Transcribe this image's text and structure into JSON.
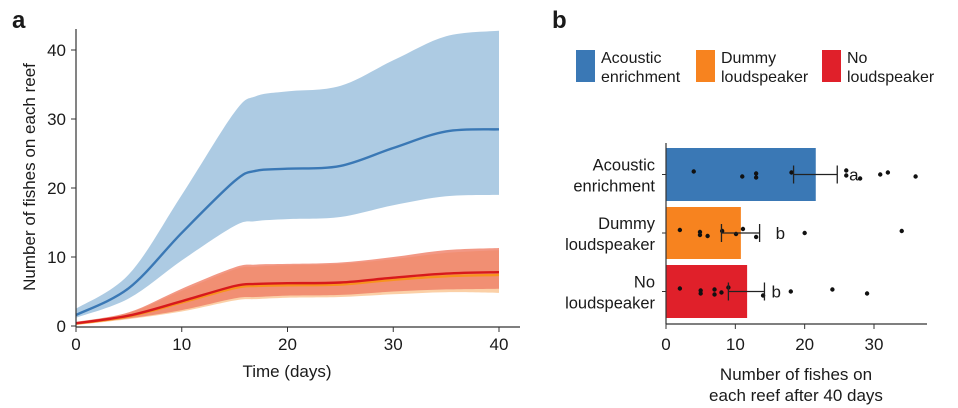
{
  "chart_data": [
    {
      "panel": "a",
      "type": "line",
      "xlabel": "Time (days)",
      "ylabel": "Number of fishes on each reef",
      "xlim": [
        0,
        40
      ],
      "ylim": [
        0,
        43
      ],
      "xticks": [
        0,
        10,
        20,
        30,
        40
      ],
      "yticks": [
        0,
        10,
        20,
        30,
        40
      ],
      "grid": false,
      "x": [
        0,
        5,
        10,
        15,
        17,
        20,
        25,
        30,
        35,
        40
      ],
      "series": [
        {
          "name": "Acoustic enrichment",
          "color": "#3a78b5",
          "band_color": "#a9c8e2",
          "mean": [
            1.6,
            5.5,
            13.5,
            21.0,
            22.5,
            22.8,
            23.2,
            25.8,
            28.2,
            28.5
          ],
          "upper": [
            2.5,
            7.5,
            19.0,
            31.0,
            33.3,
            34.0,
            34.8,
            38.5,
            42.0,
            42.8
          ],
          "lower": [
            1.2,
            4.0,
            9.5,
            14.5,
            15.2,
            15.5,
            15.8,
            17.5,
            18.8,
            19.0
          ]
        },
        {
          "name": "Dummy loudspeaker",
          "color": "#f7931e",
          "band_color": "#f9c08a",
          "mean": [
            0.35,
            1.4,
            3.4,
            5.5,
            5.8,
            5.9,
            6.0,
            6.7,
            7.2,
            7.4
          ],
          "upper": [
            0.55,
            1.9,
            5.1,
            8.2,
            8.6,
            8.8,
            9.0,
            9.7,
            10.6,
            11.0
          ],
          "lower": [
            0.15,
            1.0,
            2.1,
            3.7,
            3.9,
            4.1,
            4.2,
            4.6,
            4.9,
            4.8
          ]
        },
        {
          "name": "No loudspeaker",
          "color": "#d7191c",
          "band_color": "#ef7e66",
          "mean": [
            0.4,
            1.5,
            3.6,
            5.8,
            6.1,
            6.2,
            6.3,
            7.0,
            7.6,
            7.8
          ],
          "upper": [
            0.6,
            2.0,
            5.4,
            8.5,
            8.9,
            9.0,
            9.2,
            10.0,
            11.0,
            11.3
          ],
          "lower": [
            0.2,
            1.1,
            2.3,
            4.0,
            4.2,
            4.4,
            4.5,
            5.0,
            5.3,
            5.4
          ]
        }
      ]
    },
    {
      "panel": "b",
      "type": "bar",
      "orientation": "horizontal",
      "xlabel": "Number of fishes on each reef after 40 days",
      "xlabel_lines": [
        "Number of fishes on",
        "each reef after 40 days"
      ],
      "xlim": [
        0,
        37.5
      ],
      "xticks": [
        0,
        10,
        20,
        30
      ],
      "grid": false,
      "legend_position": "top",
      "categories": [
        {
          "label_lines": [
            "Acoustic",
            "enrichment"
          ],
          "value": 21.6,
          "err_low": 18.4,
          "err_high": 24.7,
          "letter": "a",
          "letter_x": 27.1,
          "color": "#3a78b5",
          "points": [
            4.0,
            11.0,
            13.0,
            13.0,
            18.1,
            26.0,
            26.0,
            28.0,
            30.9,
            32.0,
            36.0
          ]
        },
        {
          "label_lines": [
            "Dummy",
            "loudspeaker"
          ],
          "value": 10.8,
          "err_low": 8.0,
          "err_high": 13.5,
          "letter": "b",
          "letter_x": 16.5,
          "color": "#f7831f",
          "points": [
            2.0,
            4.9,
            4.9,
            6.0,
            8.1,
            10.1,
            11.1,
            13.0,
            20.0,
            34.0
          ]
        },
        {
          "label_lines": [
            "No",
            "loudspeaker"
          ],
          "value": 11.7,
          "err_low": 9.0,
          "err_high": 14.2,
          "letter": "b",
          "letter_x": 15.9,
          "color": "#e0202a",
          "points": [
            2.0,
            5.0,
            5.0,
            7.0,
            7.0,
            8.0,
            9.0,
            14.0,
            18.0,
            24.0,
            29.0
          ]
        }
      ],
      "legend": [
        {
          "label_lines": [
            "Acoustic",
            "enrichment"
          ],
          "color": "#3a78b5"
        },
        {
          "label_lines": [
            "Dummy",
            "loudspeaker"
          ],
          "color": "#f7831f"
        },
        {
          "label_lines": [
            "No",
            "loudspeaker"
          ],
          "color": "#e0202a"
        }
      ]
    }
  ],
  "panel_labels": [
    "a",
    "b"
  ]
}
